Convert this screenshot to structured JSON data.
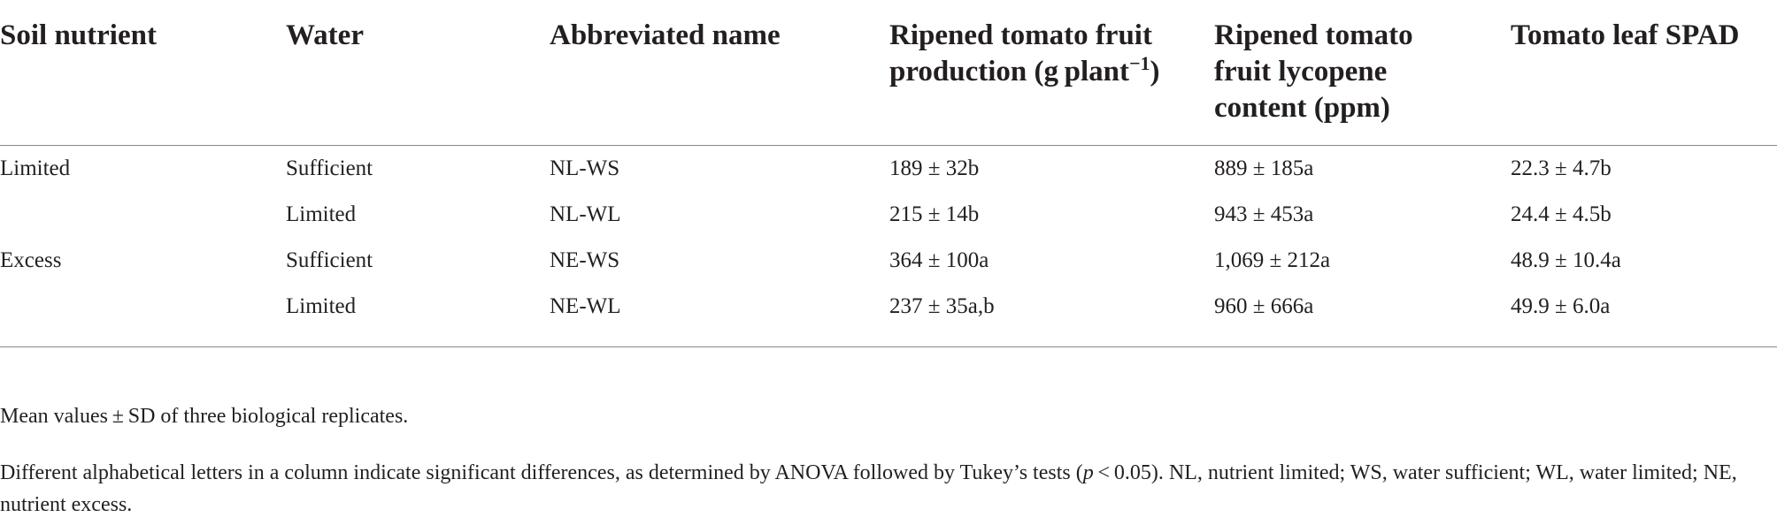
{
  "table": {
    "header": [
      {
        "text": "Soil nutrient"
      },
      {
        "text": "Water"
      },
      {
        "text": "Abbreviated name"
      },
      {
        "text": "Ripened tomato fruit production (g plant",
        "sup": "−1",
        "tail": ")"
      },
      {
        "text": "Ripened tomato fruit lycopene content (ppm)"
      },
      {
        "text": "Tomato leaf SPAD"
      }
    ],
    "groups": [
      {
        "nutrient": "Limited",
        "rows": [
          [
            "Sufficient",
            "NL-WS",
            "189 ± 32b",
            "889 ± 185a",
            "22.3 ± 4.7b"
          ],
          [
            "Limited",
            "NL-WL",
            "215 ± 14b",
            "943 ± 453a",
            "24.4 ± 4.5b"
          ]
        ]
      },
      {
        "nutrient": "Excess",
        "rows": [
          [
            "Sufficient",
            "NE-WS",
            "364 ± 100a",
            "1,069 ± 212a",
            "48.9 ± 10.4a"
          ],
          [
            "Limited",
            "NE-WL",
            "237 ± 35a,b",
            "960 ± 666a",
            "49.9 ± 6.0a"
          ]
        ]
      }
    ]
  },
  "footnotes": [
    [
      "Mean values ± SD of three biological replicates."
    ],
    [
      "Different alphabetical letters in a column indicate significant differences, as determined by ANOVA followed by Tukey’s tests (",
      "p",
      " < 0.05). NL, nutrient limited; WS, water sufficient; WL, water limited; NE, nutrient excess."
    ]
  ]
}
